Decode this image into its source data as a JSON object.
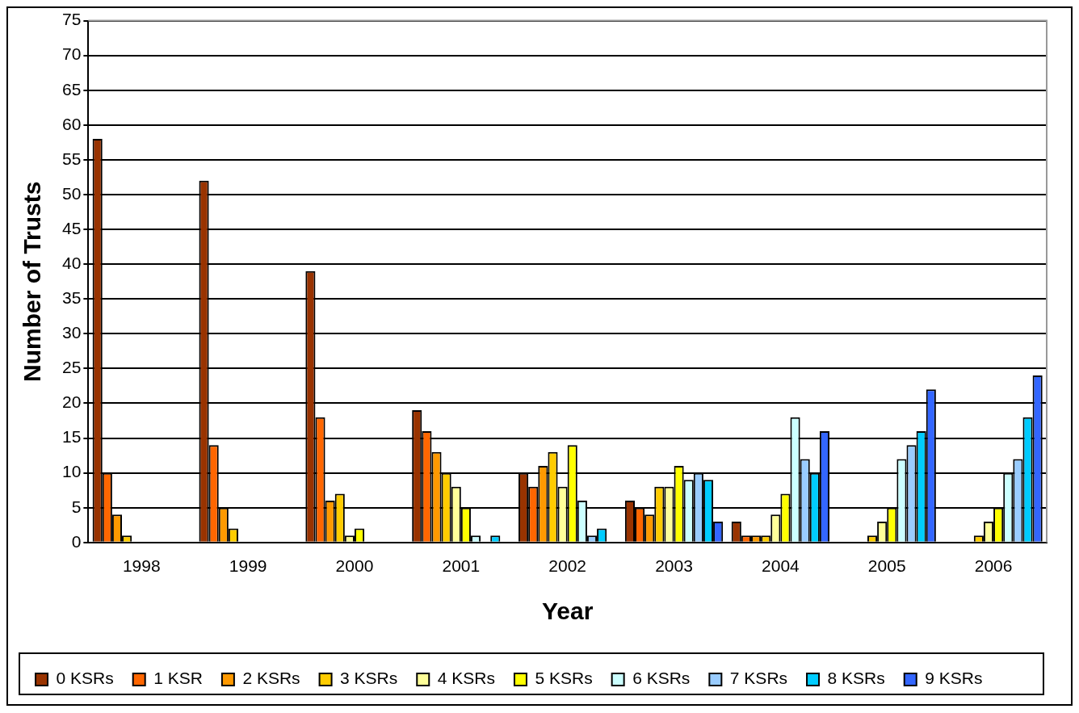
{
  "chart_data": {
    "type": "bar",
    "xlabel": "Year",
    "ylabel": "Number of Trusts",
    "categories": [
      "1998",
      "1999",
      "2000",
      "2001",
      "2002",
      "2003",
      "2004",
      "2005",
      "2006"
    ],
    "series": [
      {
        "name": "0 KSRs",
        "color": "#993300",
        "values": [
          58,
          52,
          39,
          19,
          10,
          6,
          3,
          0,
          0
        ]
      },
      {
        "name": "1 KSR",
        "color": "#ff6600",
        "values": [
          10,
          14,
          18,
          16,
          8,
          5,
          1,
          0,
          0
        ]
      },
      {
        "name": "2 KSRs",
        "color": "#ff9900",
        "values": [
          4,
          5,
          6,
          13,
          11,
          4,
          1,
          0,
          0
        ]
      },
      {
        "name": "3 KSRs",
        "color": "#ffcc00",
        "values": [
          1,
          2,
          7,
          10,
          13,
          8,
          1,
          1,
          1
        ]
      },
      {
        "name": "4 KSRs",
        "color": "#ffff99",
        "values": [
          0,
          0,
          1,
          8,
          8,
          8,
          4,
          3,
          3
        ]
      },
      {
        "name": "5 KSRs",
        "color": "#ffff00",
        "values": [
          0,
          0,
          2,
          5,
          14,
          11,
          7,
          5,
          5
        ]
      },
      {
        "name": "6 KSRs",
        "color": "#ccffff",
        "values": [
          0,
          0,
          0,
          1,
          6,
          9,
          18,
          12,
          10
        ]
      },
      {
        "name": "7 KSRs",
        "color": "#99ccff",
        "values": [
          0,
          0,
          0,
          0,
          1,
          10,
          12,
          14,
          12
        ]
      },
      {
        "name": "8 KSRs",
        "color": "#00ccff",
        "values": [
          0,
          0,
          0,
          1,
          2,
          9,
          10,
          16,
          18
        ]
      },
      {
        "name": "9 KSRs",
        "color": "#3366ff",
        "values": [
          0,
          0,
          0,
          0,
          0,
          3,
          16,
          22,
          24
        ]
      }
    ],
    "ylim": [
      0,
      75
    ],
    "yticks": [
      0,
      5,
      10,
      15,
      20,
      25,
      30,
      35,
      40,
      45,
      50,
      55,
      60,
      65,
      70,
      75
    ],
    "grid": "y",
    "legend": "bottom"
  }
}
